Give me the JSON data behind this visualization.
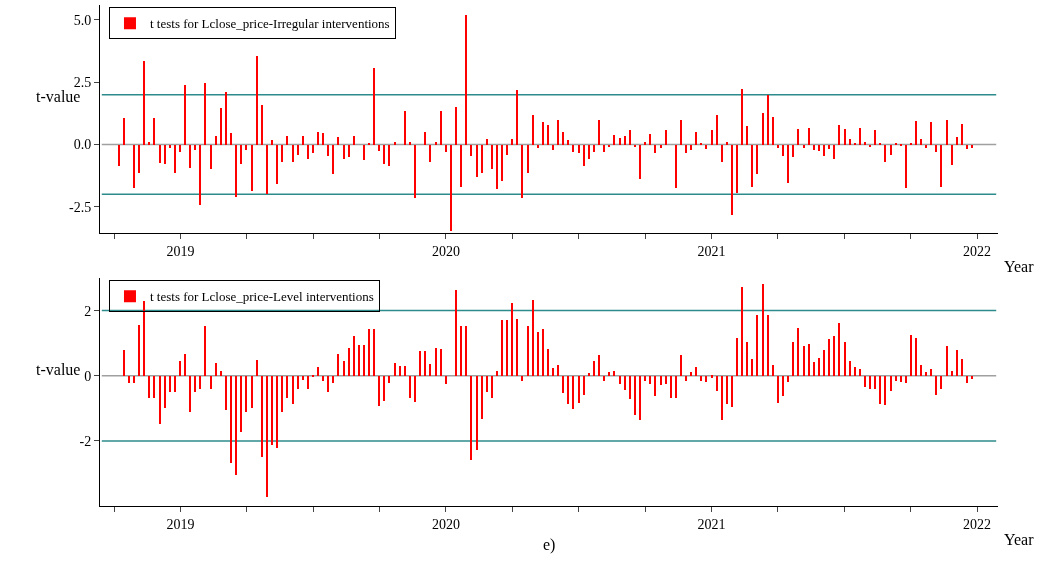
{
  "chart_data": [
    {
      "type": "bar",
      "xlabel": "Year",
      "ylabel": "t-value",
      "legend": "top left",
      "x": [
        2018.768,
        2018.787,
        2018.807,
        2018.826,
        2018.845,
        2018.864,
        2018.884,
        2018.903,
        2018.922,
        2018.941,
        2018.961,
        2018.98,
        2018.999,
        2019.018,
        2019.038,
        2019.057,
        2019.076,
        2019.095,
        2019.115,
        2019.134,
        2019.153,
        2019.172,
        2019.192,
        2019.211,
        2019.23,
        2019.249,
        2019.269,
        2019.288,
        2019.307,
        2019.326,
        2019.346,
        2019.365,
        2019.384,
        2019.403,
        2019.423,
        2019.442,
        2019.461,
        2019.48,
        2019.5,
        2019.519,
        2019.538,
        2019.557,
        2019.577,
        2019.596,
        2019.615,
        2019.634,
        2019.654,
        2019.673,
        2019.692,
        2019.711,
        2019.731,
        2019.75,
        2019.769,
        2019.788,
        2019.808,
        2019.827,
        2019.846,
        2019.865,
        2019.885,
        2019.904,
        2019.923,
        2019.942,
        2019.962,
        2019.981,
        2020.0,
        2020.019,
        2020.039,
        2020.058,
        2020.077,
        2020.096,
        2020.116,
        2020.135,
        2020.154,
        2020.173,
        2020.193,
        2020.212,
        2020.231,
        2020.25,
        2020.27,
        2020.289,
        2020.308,
        2020.327,
        2020.347,
        2020.366,
        2020.385,
        2020.404,
        2020.424,
        2020.443,
        2020.462,
        2020.481,
        2020.501,
        2020.52,
        2020.539,
        2020.558,
        2020.578,
        2020.597,
        2020.616,
        2020.635,
        2020.655,
        2020.674,
        2020.693,
        2020.712,
        2020.732,
        2020.751,
        2020.77,
        2020.789,
        2020.809,
        2020.828,
        2020.847,
        2020.866,
        2020.886,
        2020.905,
        2020.924,
        2020.943,
        2020.963,
        2020.982,
        2021.001,
        2021.02,
        2021.04,
        2021.059,
        2021.078,
        2021.097,
        2021.117,
        2021.136,
        2021.155,
        2021.174,
        2021.194,
        2021.213,
        2021.232,
        2021.251,
        2021.271,
        2021.29,
        2021.309,
        2021.328,
        2021.348,
        2021.367,
        2021.386,
        2021.405,
        2021.425,
        2021.444,
        2021.463,
        2021.482,
        2021.502,
        2021.521,
        2021.54,
        2021.559,
        2021.579,
        2021.598,
        2021.617,
        2021.636,
        2021.656,
        2021.675,
        2021.694,
        2021.713,
        2021.733,
        2021.752,
        2021.771,
        2021.79,
        2021.81,
        2021.829,
        2021.848,
        2021.867,
        2021.887,
        2021.906,
        2021.925,
        2021.944,
        2021.964,
        2021.983
      ],
      "series": [
        {
          "name": "t tests for Lclose_price-Irregular interventions",
          "color": "#ff0000",
          "values": [
            -0.86,
            1.07,
            0,
            -1.74,
            -1.14,
            3.35,
            0.1,
            1.07,
            -0.73,
            -0.77,
            -0.12,
            -1.14,
            -0.3,
            2.39,
            -0.93,
            -0.2,
            -2.42,
            2.46,
            -0.99,
            0.35,
            1.46,
            2.12,
            0.48,
            -2.1,
            -0.77,
            -0.2,
            -1.88,
            3.57,
            1.57,
            -2.0,
            0.18,
            -1.6,
            -0.7,
            0.35,
            -0.7,
            -0.43,
            0.35,
            -0.6,
            -0.36,
            0.51,
            0.48,
            -0.47,
            -1.2,
            0.29,
            -0.6,
            -0.52,
            0.35,
            0,
            -0.64,
            0.08,
            3.07,
            -0.25,
            -0.77,
            -0.86,
            0.12,
            0,
            1.35,
            0.12,
            -2.14,
            0,
            0.51,
            -0.69,
            0.12,
            1.35,
            -0.3,
            -3.46,
            1.52,
            -1.7,
            5.2,
            -0.47,
            -1.31,
            -1.14,
            0.22,
            -0.99,
            -1.8,
            -1.47,
            -0.43,
            0.22,
            2.17,
            -2.14,
            -1.14,
            1.18,
            -0.14,
            0.9,
            0.8,
            -0.2,
            1.0,
            0.51,
            0.18,
            -0.3,
            -0.36,
            -0.86,
            -0.6,
            -0.3,
            1.0,
            -0.3,
            -0.08,
            0.4,
            0.25,
            0.34,
            0.57,
            -0.1,
            -1.4,
            0.12,
            0.44,
            -0.36,
            -0.14,
            0.57,
            0,
            -1.74,
            1.0,
            -0.36,
            -0.23,
            0.51,
            0.08,
            -0.18,
            0.57,
            1.18,
            -0.69,
            0.12,
            -2.81,
            -1.96,
            2.24,
            0.73,
            -1.7,
            -1.2,
            1.28,
            2.0,
            1.12,
            -0.14,
            -0.47,
            -1.54,
            -0.52,
            0.61,
            -0.14,
            0.68,
            -0.2,
            -0.26,
            -0.47,
            -0.18,
            -0.59,
            0.8,
            0.61,
            0.22,
            0.08,
            0.68,
            0.12,
            -0.08,
            0.57,
            0.08,
            -0.69,
            -0.43,
            0.08,
            -0.03,
            -1.74,
            0.08,
            0.96,
            0.22,
            -0.14,
            0.9,
            -0.3,
            -1.7,
            1.0,
            -0.82,
            0.29,
            0.83,
            -0.18,
            -0.14
          ]
        }
      ],
      "xlim": [
        2018.697,
        2022.079
      ],
      "xticks": [
        {
          "value": 2018.75,
          "label": null
        },
        2019,
        {
          "value": 2019.25,
          "label": null
        },
        {
          "value": 2019.5,
          "label": null
        },
        {
          "value": 2019.75,
          "label": null
        },
        2020,
        {
          "value": 2020.25,
          "label": null
        },
        {
          "value": 2020.5,
          "label": null
        },
        {
          "value": 2020.75,
          "label": null
        },
        2021,
        {
          "value": 2021.25,
          "label": null
        },
        {
          "value": 2021.5,
          "label": null
        },
        {
          "value": 2021.75,
          "label": null
        },
        2022
      ],
      "ylim": [
        -3.55,
        5.6
      ],
      "yticks": [
        {
          "value": -2.5,
          "label": "-2.5"
        },
        {
          "value": 0,
          "label": "0.0"
        },
        {
          "value": 2.5,
          "label": "2.5"
        },
        {
          "value": 5,
          "label": "5.0"
        }
      ],
      "ref_lines": [
        {
          "axis": "y",
          "value": 0,
          "color": "#a0a0a0"
        },
        {
          "axis": "y",
          "value": 2,
          "color": "#2e8b8b"
        },
        {
          "axis": "y",
          "value": -2,
          "color": "#2e8b8b"
        }
      ]
    },
    {
      "type": "bar",
      "xlabel": "Year",
      "ylabel": "t-value",
      "legend": "top left",
      "x": [
        2018.768,
        2018.787,
        2018.807,
        2018.826,
        2018.845,
        2018.864,
        2018.884,
        2018.903,
        2018.922,
        2018.941,
        2018.961,
        2018.98,
        2018.999,
        2019.018,
        2019.038,
        2019.057,
        2019.076,
        2019.095,
        2019.115,
        2019.134,
        2019.153,
        2019.172,
        2019.192,
        2019.211,
        2019.23,
        2019.249,
        2019.269,
        2019.288,
        2019.307,
        2019.326,
        2019.346,
        2019.365,
        2019.384,
        2019.403,
        2019.423,
        2019.442,
        2019.461,
        2019.48,
        2019.5,
        2019.519,
        2019.538,
        2019.557,
        2019.577,
        2019.596,
        2019.615,
        2019.634,
        2019.654,
        2019.673,
        2019.692,
        2019.711,
        2019.731,
        2019.75,
        2019.769,
        2019.788,
        2019.808,
        2019.827,
        2019.846,
        2019.865,
        2019.885,
        2019.904,
        2019.923,
        2019.942,
        2019.962,
        2019.981,
        2020.0,
        2020.019,
        2020.039,
        2020.058,
        2020.077,
        2020.096,
        2020.116,
        2020.135,
        2020.154,
        2020.173,
        2020.193,
        2020.212,
        2020.231,
        2020.25,
        2020.27,
        2020.289,
        2020.308,
        2020.327,
        2020.347,
        2020.366,
        2020.385,
        2020.404,
        2020.424,
        2020.443,
        2020.462,
        2020.481,
        2020.501,
        2020.52,
        2020.539,
        2020.558,
        2020.578,
        2020.597,
        2020.616,
        2020.635,
        2020.655,
        2020.674,
        2020.693,
        2020.712,
        2020.732,
        2020.751,
        2020.77,
        2020.789,
        2020.809,
        2020.828,
        2020.847,
        2020.866,
        2020.886,
        2020.905,
        2020.924,
        2020.943,
        2020.963,
        2020.982,
        2021.001,
        2021.02,
        2021.04,
        2021.059,
        2021.078,
        2021.097,
        2021.117,
        2021.136,
        2021.155,
        2021.174,
        2021.194,
        2021.213,
        2021.232,
        2021.251,
        2021.271,
        2021.29,
        2021.309,
        2021.328,
        2021.348,
        2021.367,
        2021.386,
        2021.405,
        2021.425,
        2021.444,
        2021.463,
        2021.482,
        2021.502,
        2021.521,
        2021.54,
        2021.559,
        2021.579,
        2021.598,
        2021.617,
        2021.636,
        2021.656,
        2021.675,
        2021.694,
        2021.713,
        2021.733,
        2021.752,
        2021.771,
        2021.79,
        2021.81,
        2021.829,
        2021.848,
        2021.867,
        2021.887,
        2021.906,
        2021.925,
        2021.944,
        2021.964,
        2021.983
      ],
      "series": [
        {
          "name": "t tests for Lclose_price-Level interventions",
          "color": "#ff0000",
          "values": [
            0,
            0.79,
            -0.21,
            -0.21,
            1.55,
            2.3,
            -0.67,
            -0.67,
            -1.47,
            -0.98,
            -0.49,
            -0.49,
            0.44,
            0.67,
            -1.1,
            -0.49,
            -0.4,
            1.52,
            -0.4,
            0.4,
            0.14,
            -1.06,
            -2.67,
            -3.06,
            -1.73,
            -1.1,
            -0.98,
            0.48,
            -2.49,
            -3.73,
            -2.13,
            -2.23,
            -1.1,
            -0.67,
            -0.88,
            -0.4,
            -0.13,
            -0.4,
            -0.02,
            0.27,
            -0.17,
            -0.49,
            -0.21,
            0.67,
            0.44,
            0.84,
            1.21,
            0.94,
            0.94,
            1.42,
            1.42,
            -0.93,
            -0.77,
            -0.21,
            0.4,
            0.31,
            0.31,
            -0.7,
            -0.8,
            0.76,
            0.76,
            0.36,
            0.85,
            0.81,
            -0.24,
            0,
            2.62,
            1.53,
            1.53,
            -2.6,
            -2.29,
            -1.32,
            -0.51,
            -0.69,
            0.15,
            1.7,
            1.7,
            2.24,
            1.74,
            -0.17,
            1.53,
            2.32,
            1.35,
            1.43,
            0.81,
            0.23,
            0.32,
            -0.52,
            -0.86,
            -1.01,
            -0.84,
            -0.58,
            0.07,
            0.46,
            0.65,
            -0.17,
            0.1,
            0.15,
            -0.24,
            -0.45,
            -0.71,
            -1.2,
            -1.36,
            -0.17,
            -0.24,
            -0.61,
            -0.3,
            -0.24,
            -0.69,
            -0.69,
            0.64,
            -0.17,
            0.1,
            0.28,
            -0.17,
            -0.2,
            -0.06,
            -0.47,
            -1.36,
            -0.88,
            -0.97,
            1.17,
            2.73,
            1.05,
            0.52,
            1.85,
            2.82,
            1.85,
            0.32,
            -0.83,
            -0.61,
            -0.2,
            1.05,
            1.48,
            0.92,
            0.96,
            0.42,
            0.55,
            0.78,
            1.13,
            1.23,
            1.62,
            1.05,
            0.46,
            0.28,
            0.2,
            -0.34,
            -0.42,
            -0.42,
            -0.87,
            -0.91,
            -0.46,
            -0.15,
            -0.19,
            -0.23,
            1.26,
            1.17,
            0.33,
            0.1,
            0.2,
            -0.6,
            -0.42,
            0.91,
            0.15,
            0.78,
            0.52,
            -0.23,
            -0.11
          ]
        }
      ],
      "xlim": [
        2018.697,
        2022.079
      ],
      "xticks": [
        {
          "value": 2018.75,
          "label": null
        },
        2019,
        {
          "value": 2019.25,
          "label": null
        },
        {
          "value": 2019.5,
          "label": null
        },
        {
          "value": 2019.75,
          "label": null
        },
        2020,
        {
          "value": 2020.25,
          "label": null
        },
        {
          "value": 2020.5,
          "label": null
        },
        {
          "value": 2020.75,
          "label": null
        },
        2021,
        {
          "value": 2021.25,
          "label": null
        },
        {
          "value": 2021.5,
          "label": null
        },
        {
          "value": 2021.75,
          "label": null
        },
        2022
      ],
      "ylim": [
        -4.0,
        3.0
      ],
      "yticks": [
        -2,
        0,
        2
      ],
      "ref_lines": [
        {
          "axis": "y",
          "value": 0,
          "color": "#a0a0a0"
        },
        {
          "axis": "y",
          "value": 2,
          "color": "#2e8b8b"
        },
        {
          "axis": "y",
          "value": -2,
          "color": "#2e8b8b"
        }
      ],
      "annotations": [
        "e)"
      ]
    }
  ]
}
